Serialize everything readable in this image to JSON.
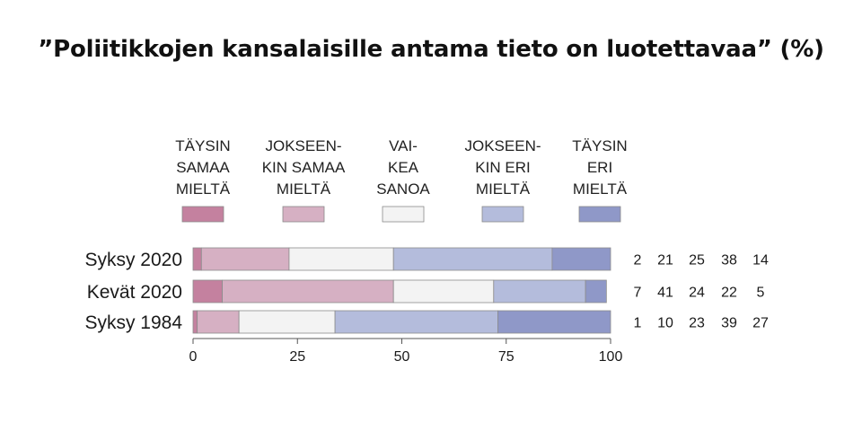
{
  "title": "”Poliitikkojen kansalaisille antama tieto on luotettavaa” (%)",
  "chart_data": {
    "type": "bar",
    "orientation": "horizontal",
    "stacked": true,
    "title": "”Poliitikkojen kansalaisille antama tieto on luotettavaa” (%)",
    "categories": [
      "Syksy 2020",
      "Kevät 2020",
      "Syksy 1984"
    ],
    "series": [
      {
        "name": "TÄYSIN SAMAA MIELTÄ",
        "label_lines": [
          "TÄYSIN",
          "SAMAA",
          "MIELTÄ"
        ],
        "color": "#c4819f",
        "values": [
          2,
          7,
          1
        ]
      },
      {
        "name": "JOKSEEN-KIN SAMAA MIELTÄ",
        "label_lines": [
          "JOKSEEN-",
          "KIN SAMAA",
          "MIELTÄ"
        ],
        "color": "#d6b0c3",
        "values": [
          21,
          41,
          10
        ]
      },
      {
        "name": "VAI-KEA SANOA",
        "label_lines": [
          "VAI-",
          "KEA",
          "SANOA"
        ],
        "color": "#f3f3f3",
        "values": [
          25,
          24,
          23
        ]
      },
      {
        "name": "JOKSEEN-KIN ERI MIELTÄ",
        "label_lines": [
          "JOKSEEN-",
          "KIN ERI",
          "MIELTÄ"
        ],
        "color": "#b4bcdc",
        "values": [
          38,
          22,
          39
        ]
      },
      {
        "name": "TÄYSIN ERI MIELTÄ",
        "label_lines": [
          "TÄYSIN",
          "ERI",
          "MIELTÄ"
        ],
        "color": "#8f98c8",
        "values": [
          14,
          5,
          27
        ]
      }
    ],
    "xlim": [
      0,
      100
    ],
    "x_ticks": [
      0,
      25,
      50,
      75,
      100
    ],
    "xlabel": "",
    "ylabel": "",
    "grid": false,
    "legend_position": "top",
    "value_labels_position": "right"
  }
}
